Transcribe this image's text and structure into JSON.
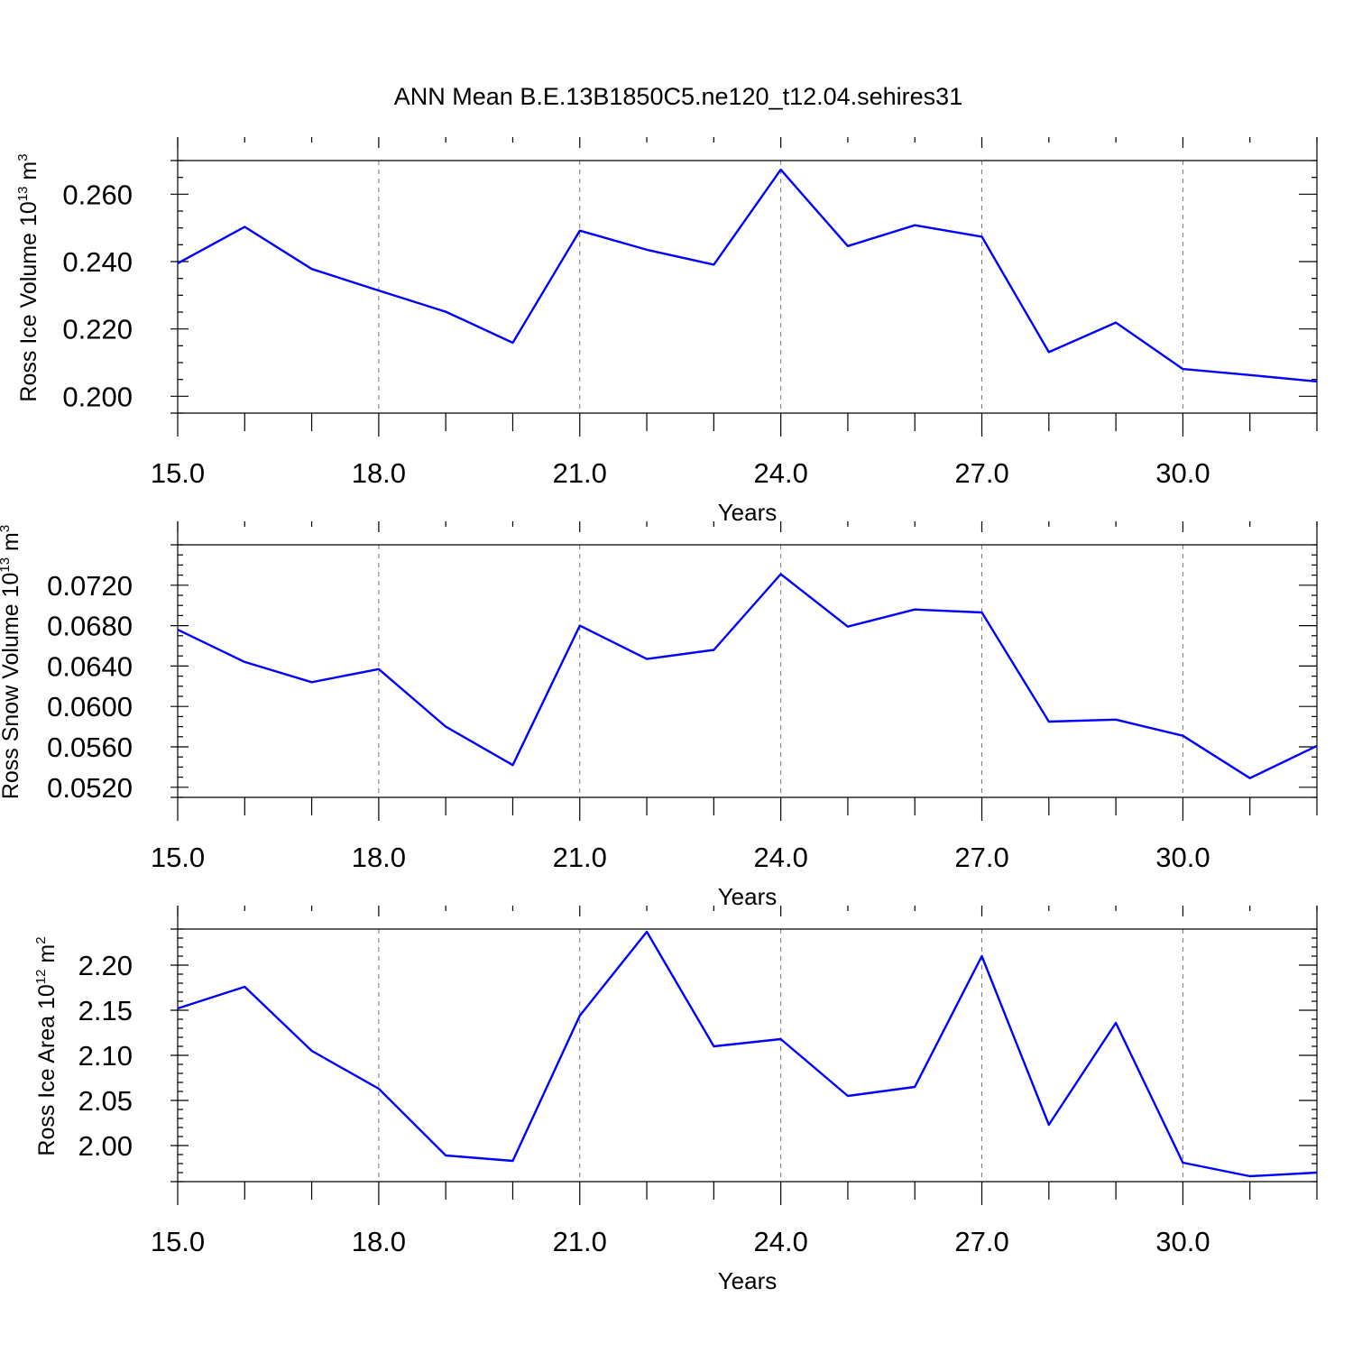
{
  "title": "ANN Mean B.E.13B1850C5.ne120_t12.04.sehires31",
  "colors": {
    "series": "#0000ff",
    "axis": "#000000",
    "grid": "#777777"
  },
  "chart_data": [
    {
      "type": "line",
      "xlabel": "Years",
      "ylabel": {
        "main": "Ross Ice Volume 10",
        "exp": "13",
        "unit": " m",
        "unit_exp": "3"
      },
      "xlim": [
        15,
        32
      ],
      "ylim": [
        0.195,
        0.27
      ],
      "x_major_ticks": [
        "15.0",
        "18.0",
        "21.0",
        "24.0",
        "27.0",
        "30.0"
      ],
      "y_major_ticks": [
        "0.200",
        "0.220",
        "0.240",
        "0.260"
      ],
      "x_minor_step": 1,
      "y_minor_step": 0.005,
      "grid": "vertical dashed at major x ticks",
      "x": [
        15,
        16,
        17,
        18,
        19,
        20,
        21,
        22,
        23,
        24,
        25,
        26,
        27,
        28,
        29,
        30,
        31,
        32
      ],
      "values": [
        0.2395,
        0.2503,
        0.2378,
        0.2314,
        0.2251,
        0.2159,
        0.2492,
        0.2435,
        0.2391,
        0.2673,
        0.2446,
        0.2508,
        0.2474,
        0.2131,
        0.2219,
        0.2081,
        0.2063,
        0.2044
      ]
    },
    {
      "type": "line",
      "xlabel": "Years",
      "ylabel": {
        "main": "Ross Snow Volume 10",
        "exp": "13",
        "unit": " m",
        "unit_exp": "3"
      },
      "xlim": [
        15,
        32
      ],
      "ylim": [
        0.051,
        0.076
      ],
      "x_major_ticks": [
        "15.0",
        "18.0",
        "21.0",
        "24.0",
        "27.0",
        "30.0"
      ],
      "y_major_ticks": [
        "0.0520",
        "0.0560",
        "0.0600",
        "0.0640",
        "0.0680",
        "0.0720"
      ],
      "x_minor_step": 1,
      "y_minor_step": 0.001,
      "grid": "vertical dashed at major x ticks",
      "x": [
        15,
        16,
        17,
        18,
        19,
        20,
        21,
        22,
        23,
        24,
        25,
        26,
        27,
        28,
        29,
        30,
        31,
        32
      ],
      "values": [
        0.0676,
        0.0644,
        0.0624,
        0.0637,
        0.058,
        0.0542,
        0.068,
        0.0647,
        0.0656,
        0.0731,
        0.0679,
        0.0696,
        0.0693,
        0.0585,
        0.0587,
        0.0571,
        0.0529,
        0.0561
      ]
    },
    {
      "type": "line",
      "xlabel": "Years",
      "ylabel": {
        "main": "Ross Ice Area 10",
        "exp": "12",
        "unit": " m",
        "unit_exp": "2"
      },
      "xlim": [
        15,
        32
      ],
      "ylim": [
        1.96,
        2.24
      ],
      "x_major_ticks": [
        "15.0",
        "18.0",
        "21.0",
        "24.0",
        "27.0",
        "30.0"
      ],
      "y_major_ticks": [
        "2.00",
        "2.05",
        "2.10",
        "2.15",
        "2.20"
      ],
      "x_minor_step": 1,
      "y_minor_step": 0.01,
      "grid": "vertical dashed at major x ticks",
      "x": [
        15,
        16,
        17,
        18,
        19,
        20,
        21,
        22,
        23,
        24,
        25,
        26,
        27,
        28,
        29,
        30,
        31,
        32
      ],
      "values": [
        2.152,
        2.176,
        2.105,
        2.063,
        1.989,
        1.983,
        2.144,
        2.237,
        2.11,
        2.118,
        2.055,
        2.065,
        2.21,
        2.023,
        2.136,
        1.981,
        1.966,
        1.97
      ]
    }
  ]
}
